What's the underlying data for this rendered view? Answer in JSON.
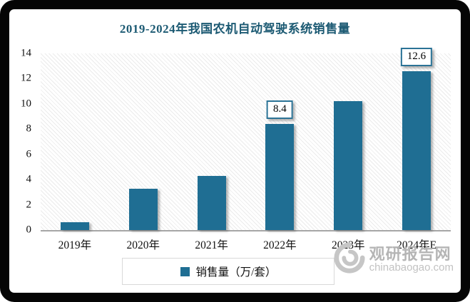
{
  "chart_data": {
    "type": "bar",
    "title": "2019-2024年我国农机自动驾驶系统销售量",
    "categories": [
      "2019年",
      "2020年",
      "2021年",
      "2022年",
      "2023年",
      "2024年E"
    ],
    "values": [
      0.6,
      3.3,
      4.3,
      8.4,
      10.2,
      12.6
    ],
    "value_labels": [
      "",
      "",
      "",
      "8.4",
      "",
      "12.6"
    ],
    "ylim": [
      0,
      14
    ],
    "yticks": [
      0,
      2,
      4,
      6,
      8,
      10,
      12,
      14
    ],
    "xlabel": "",
    "ylabel": "",
    "grid": false,
    "legend_position": "bottom",
    "legend": "销售量（万/套）"
  },
  "watermark": {
    "icon": "swirl-logo-icon",
    "name": "观研报告网",
    "domain": "chinabaogao.com"
  },
  "colors": {
    "title": "#1C5A73",
    "bar": "#1F6E93",
    "axis_line": "#A6A6A6",
    "value_label_border": "#2B7396",
    "legend_border": "#D9D9D9",
    "frame": "#050505",
    "watermark_gray": "#B5B5B5"
  }
}
